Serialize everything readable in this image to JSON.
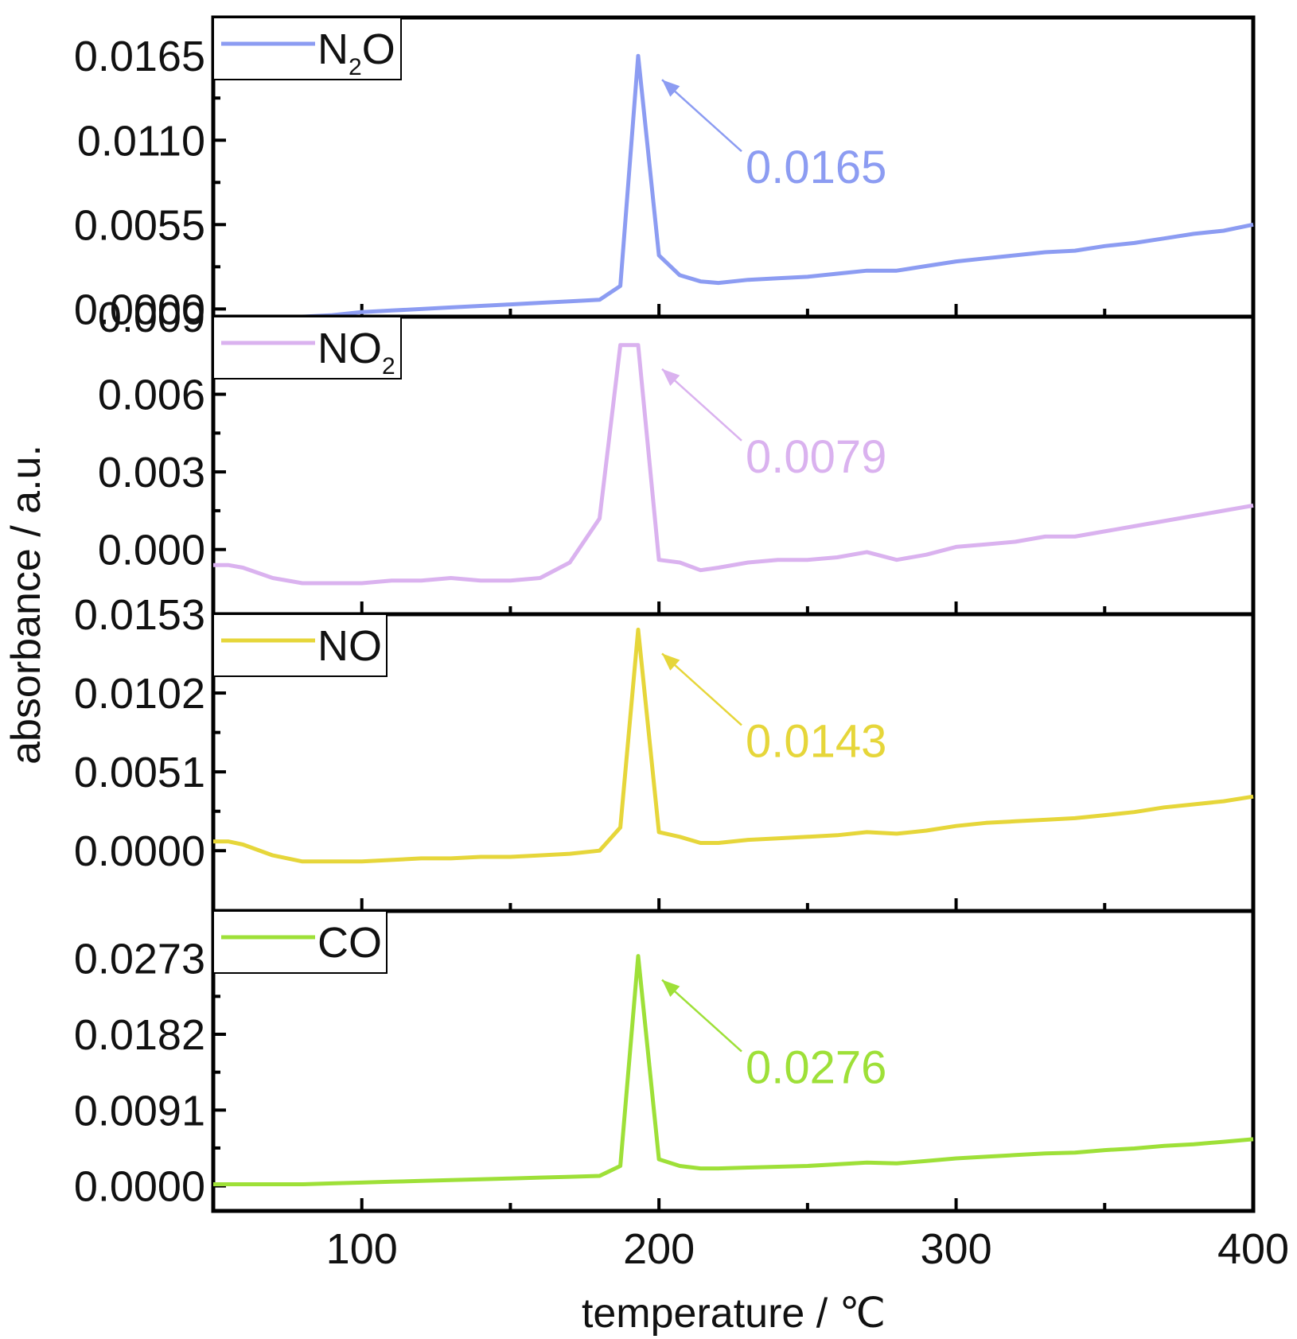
{
  "chart_data": {
    "type": "line",
    "xlabel": "temperature / ℃",
    "ylabel": "absorbance / a.u.",
    "xlim": [
      50,
      400
    ],
    "x_ticks": [
      "100",
      "200",
      "300",
      "400"
    ],
    "shared_x": [
      50,
      55,
      60,
      70,
      80,
      90,
      100,
      110,
      120,
      130,
      140,
      150,
      160,
      170,
      180,
      187,
      193,
      200,
      207,
      214,
      220,
      230,
      240,
      250,
      260,
      270,
      280,
      290,
      300,
      310,
      320,
      330,
      340,
      350,
      360,
      370,
      380,
      390,
      400
    ],
    "panels": [
      {
        "legend_main": "N",
        "legend_sub": "2",
        "legend_tail": "O",
        "color": "#8c9cf2",
        "y_ticks": [
          "0.0000",
          "0.0055",
          "0.0110",
          "0.0165"
        ],
        "ylim": [
          -0.0005,
          0.019
        ],
        "annotation": "0.0165",
        "peak_x": 193,
        "peak_y": 0.0165,
        "values": [
          -0.0005,
          -0.0005,
          -0.0005,
          -0.0005,
          -0.0005,
          -0.0004,
          -0.0002,
          -0.0001,
          0.0,
          0.0001,
          0.0002,
          0.0003,
          0.0004,
          0.0005,
          0.0006,
          0.0015,
          0.0165,
          0.0035,
          0.0022,
          0.0018,
          0.0017,
          0.0019,
          0.002,
          0.0021,
          0.0023,
          0.0025,
          0.0025,
          0.0028,
          0.0031,
          0.0033,
          0.0035,
          0.0037,
          0.0038,
          0.0041,
          0.0043,
          0.0046,
          0.0049,
          0.0051,
          0.0055
        ]
      },
      {
        "legend_main": "NO",
        "legend_sub": "2",
        "legend_tail": "",
        "color": "#dab2ef",
        "y_ticks": [
          "0.000",
          "0.003",
          "0.006",
          "0.009"
        ],
        "ylim": [
          -0.0025,
          0.009
        ],
        "annotation": "0.0079",
        "peak_x": 193,
        "peak_y": 0.0079,
        "values": [
          -0.0006,
          -0.0006,
          -0.0007,
          -0.0011,
          -0.0013,
          -0.0013,
          -0.0013,
          -0.0012,
          -0.0012,
          -0.0011,
          -0.0012,
          -0.0012,
          -0.0011,
          -0.0005,
          0.0012,
          0.0079,
          0.0079,
          -0.0004,
          -0.0005,
          -0.0008,
          -0.0007,
          -0.0005,
          -0.0004,
          -0.0004,
          -0.0003,
          -0.0001,
          -0.0004,
          -0.0002,
          0.0001,
          0.0002,
          0.0003,
          0.0005,
          0.0005,
          0.0007,
          0.0009,
          0.0011,
          0.0013,
          0.0015,
          0.0017
        ]
      },
      {
        "legend_main": "NO",
        "legend_sub": "",
        "legend_tail": "",
        "color": "#e6d63a",
        "y_ticks": [
          "0.0000",
          "0.0051",
          "0.0102",
          "0.0153"
        ],
        "ylim": [
          -0.0039,
          0.0153
        ],
        "annotation": "0.0143",
        "peak_x": 193,
        "peak_y": 0.0143,
        "values": [
          0.0006,
          0.0006,
          0.0004,
          -0.0003,
          -0.0007,
          -0.0007,
          -0.0007,
          -0.0006,
          -0.0005,
          -0.0005,
          -0.0004,
          -0.0004,
          -0.0003,
          -0.0002,
          0.0,
          0.0015,
          0.0143,
          0.0012,
          0.0009,
          0.0005,
          0.0005,
          0.0007,
          0.0008,
          0.0009,
          0.001,
          0.0012,
          0.0011,
          0.0013,
          0.0016,
          0.0018,
          0.0019,
          0.002,
          0.0021,
          0.0023,
          0.0025,
          0.0028,
          0.003,
          0.0032,
          0.0035
        ]
      },
      {
        "legend_main": "CO",
        "legend_sub": "",
        "legend_tail": "",
        "color": "#9ee038",
        "y_ticks": [
          "0.0000",
          "0.0091",
          "0.0182",
          "0.0273"
        ],
        "ylim": [
          -0.003,
          0.033
        ],
        "annotation": "0.0276",
        "peak_x": 193,
        "peak_y": 0.0276,
        "values": [
          0.0002,
          0.0002,
          0.0002,
          0.0002,
          0.0002,
          0.0003,
          0.0004,
          0.0005,
          0.0006,
          0.0007,
          0.0008,
          0.0009,
          0.001,
          0.0011,
          0.0012,
          0.0024,
          0.0276,
          0.0032,
          0.0024,
          0.0021,
          0.0021,
          0.0022,
          0.0023,
          0.0024,
          0.0026,
          0.0028,
          0.0027,
          0.003,
          0.0033,
          0.0035,
          0.0037,
          0.0039,
          0.004,
          0.0043,
          0.0045,
          0.0048,
          0.005,
          0.0053,
          0.0056
        ]
      }
    ]
  }
}
